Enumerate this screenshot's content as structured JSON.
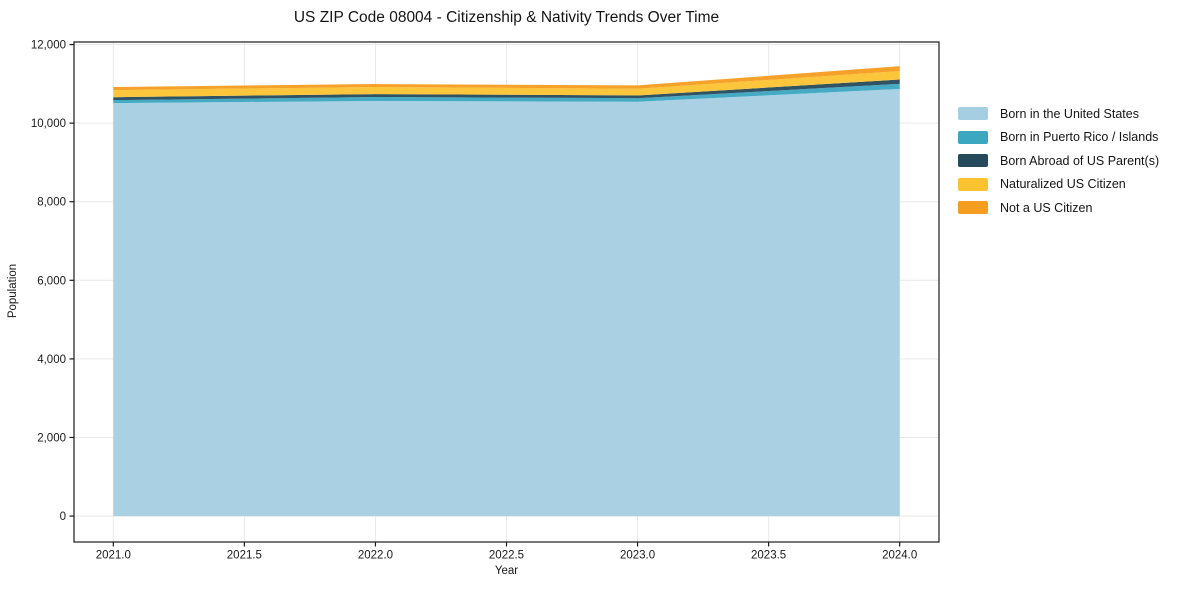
{
  "chart_data": {
    "type": "area",
    "stacked": true,
    "title": "US ZIP Code 08004 - Citizenship & Nativity Trends Over Time",
    "xlabel": "Year",
    "ylabel": "Population",
    "x": [
      2021,
      2022,
      2023,
      2024
    ],
    "series": [
      {
        "name": "Born in the United States",
        "color": "#a5cee3",
        "values": [
          10510,
          10565,
          10545,
          10870
        ]
      },
      {
        "name": "Born in Puerto Rico / Islands",
        "color": "#3ba7c1",
        "values": [
          75,
          100,
          90,
          130
        ]
      },
      {
        "name": "Born Abroad of US Parent(s)",
        "color": "#254a5c",
        "values": [
          75,
          75,
          70,
          110
        ]
      },
      {
        "name": "Naturalized US Citizen",
        "color": "#fcc331",
        "values": [
          180,
          180,
          170,
          215
        ]
      },
      {
        "name": "Not a US Citizen",
        "color": "#f59d1f",
        "values": [
          80,
          75,
          85,
          125
        ]
      }
    ],
    "totals": [
      10920,
      10995,
      10960,
      11450
    ],
    "xticks": {
      "values": [
        2021.0,
        2021.5,
        2022.0,
        2022.5,
        2023.0,
        2023.5,
        2024.0
      ],
      "labels": [
        "2021.0",
        "2021.5",
        "2022.0",
        "2022.5",
        "2023.0",
        "2023.5",
        "2024.0"
      ]
    },
    "yticks": {
      "values": [
        0,
        2000,
        4000,
        6000,
        8000,
        10000,
        12000
      ],
      "labels": [
        "0",
        "2,000",
        "4,000",
        "6,000",
        "8,000",
        "10,000",
        "12,000"
      ]
    },
    "xlim": [
      2020.85,
      2024.15
    ],
    "ylim": [
      -660,
      12065
    ],
    "grid": true,
    "legend_position": "right-outside"
  },
  "colors": {
    "background": "#ffffff",
    "grid": "#e9e9e9",
    "spine": "#1a1a1a",
    "text": "#1a1a1a"
  }
}
